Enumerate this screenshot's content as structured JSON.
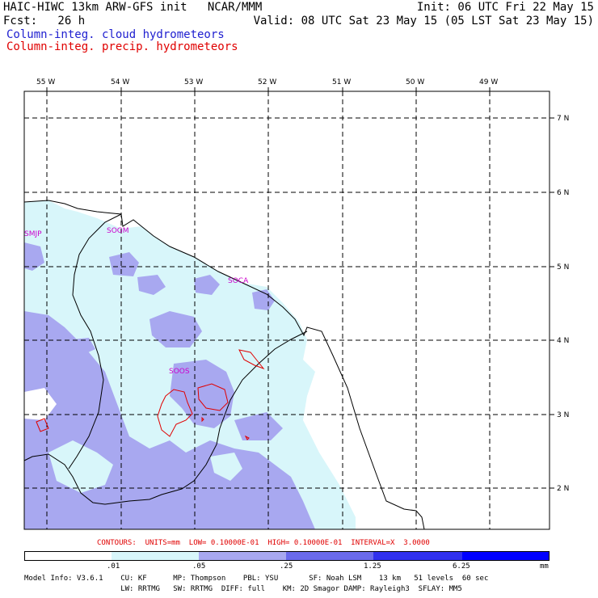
{
  "header": {
    "line1_left": "HAIC-HIWC 13km ARW-GFS init   NCAR/MMM",
    "line1_right": "Init: 06 UTC Fri 22 May 15",
    "line2_left": "Fcst:   26 h",
    "line2_right": "Valid: 08 UTC Sat 23 May 15 (05 LST Sat 23 May 15)",
    "field_cloud": "Column-integ. cloud hydrometeors",
    "field_precip": "Column-integ. precip. hydrometeors"
  },
  "colors": {
    "cloud_label": "#2020d0",
    "precip_label": "#e00000",
    "contour": "#e00000",
    "station": "#cc00cc",
    "shade_1": "#d8f6fa",
    "shade_2": "#a8a8f0",
    "shade_3": "#6a6aec",
    "shade_4": "#3030ee",
    "shade_5": "#0000ff"
  },
  "map": {
    "lon_labels": [
      "55 W",
      "54 W",
      "53 W",
      "52 W",
      "51 W",
      "50 W",
      "49 W"
    ],
    "lat_labels": [
      "7 N",
      "6 N",
      "5 N",
      "4 N",
      "3 N",
      "2 N"
    ],
    "stations": [
      "SMJP",
      "SOGM",
      "SOCA",
      "SOOS"
    ]
  },
  "contours_line": "CONTOURS:  UNITS=mm  LOW= 0.10000E-01  HIGH= 0.10000E-01  INTERVAL=X  3.0000",
  "legend": {
    "ticks": [
      ".01",
      ".05",
      ".25",
      "1.25",
      "6.25"
    ],
    "units": "mm"
  },
  "footer": {
    "line1": "Model Info: V3.6.1    CU: KF      MP: Thompson    PBL: YSU       SF: Noah LSM    13 km   51 levels  60 sec",
    "line2": "                      LW: RRTMG   SW: RRTMG  DIFF: full    KM: 2D Smagor DAMP: Rayleigh3  SFLAY: MM5"
  }
}
